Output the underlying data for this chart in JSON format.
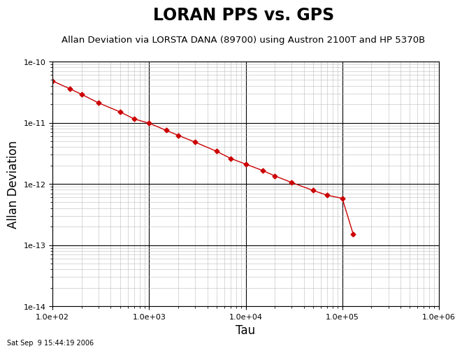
{
  "title": "LORAN PPS vs. GPS",
  "subtitle": "Allan Deviation via LORSTA DANA (89700) using Austron 2100T and HP 5370B",
  "xlabel": "Tau",
  "ylabel": "Allan Deviation",
  "timestamp": "Sat Sep  9 15:44:19 2006",
  "xlim": [
    100.0,
    1000000.0
  ],
  "ylim": [
    1e-14,
    1e-10
  ],
  "line_color": "#cc0000",
  "marker": "D",
  "markersize": 3.5,
  "linewidth": 1.0,
  "tau": [
    100,
    150,
    200,
    300,
    500,
    700,
    1000,
    1500,
    2000,
    3000,
    5000,
    7000,
    10000,
    15000,
    20000,
    30000,
    50000,
    70000,
    100000,
    130000
  ],
  "adev": [
    4.8e-11,
    3.6e-11,
    2.9e-11,
    2.1e-11,
    1.5e-11,
    1.15e-11,
    9.8e-12,
    7.5e-12,
    6.2e-12,
    4.8e-12,
    3.4e-12,
    2.6e-12,
    2.1e-12,
    1.65e-12,
    1.35e-12,
    1.05e-12,
    7.8e-13,
    6.5e-13,
    5.8e-13,
    1.5e-13
  ],
  "background_color": "#ffffff",
  "grid_major_color": "#000000",
  "grid_minor_color": "#bbbbbb",
  "title_fontsize": 17,
  "subtitle_fontsize": 9.5,
  "label_fontsize": 12,
  "timestamp_fontsize": 7
}
